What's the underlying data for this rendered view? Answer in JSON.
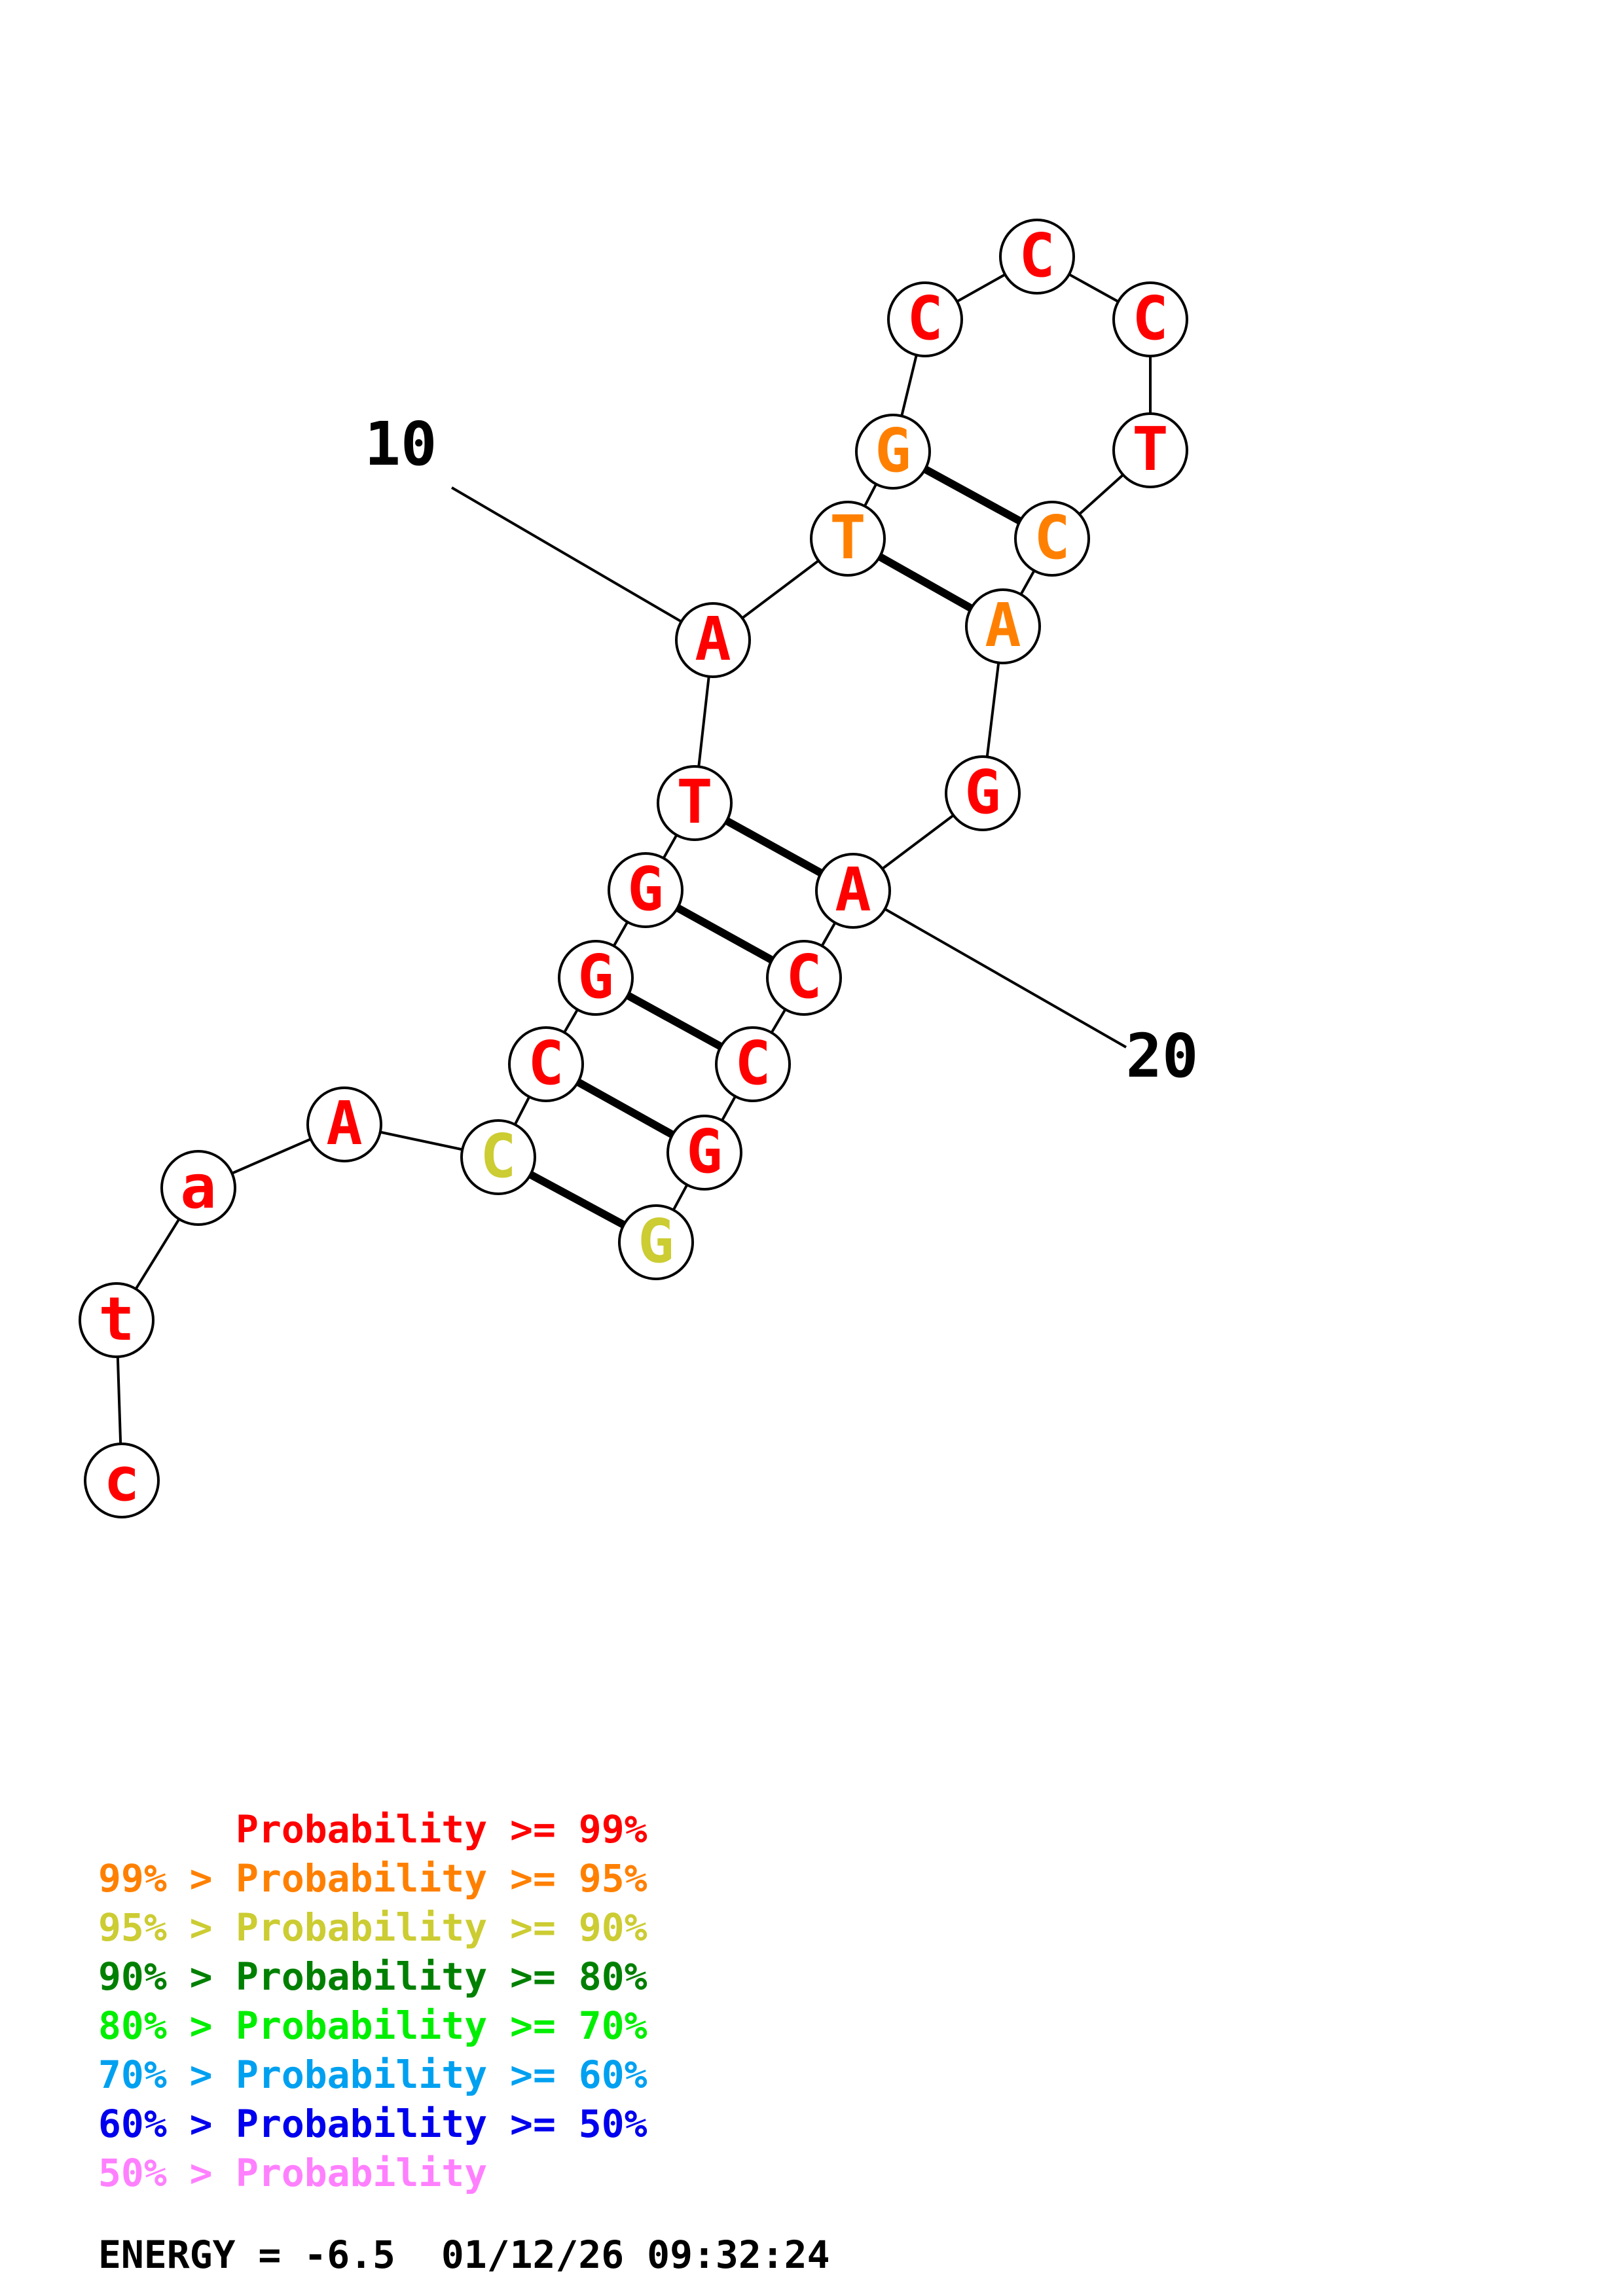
{
  "colors": {
    "p99": "#ff0000",
    "p95": "#ff8000",
    "p90": "#cccc33",
    "p80": "#008000",
    "p70": "#00ee00",
    "p60": "#00a0f0",
    "p50": "#0000ee",
    "plow": "#ff80ff"
  },
  "nucleotides": [
    {
      "index": 1,
      "letter": "c",
      "color": "p99"
    },
    {
      "index": 2,
      "letter": "t",
      "color": "p99"
    },
    {
      "index": 3,
      "letter": "a",
      "color": "p99"
    },
    {
      "index": 4,
      "letter": "A",
      "color": "p99"
    },
    {
      "index": 5,
      "letter": "C",
      "color": "p90"
    },
    {
      "index": 6,
      "letter": "C",
      "color": "p99"
    },
    {
      "index": 7,
      "letter": "G",
      "color": "p99"
    },
    {
      "index": 8,
      "letter": "G",
      "color": "p99"
    },
    {
      "index": 9,
      "letter": "T",
      "color": "p99"
    },
    {
      "index": 10,
      "letter": "A",
      "color": "p99"
    },
    {
      "index": 11,
      "letter": "T",
      "color": "p95"
    },
    {
      "index": 12,
      "letter": "G",
      "color": "p95"
    },
    {
      "index": 13,
      "letter": "C",
      "color": "p99"
    },
    {
      "index": 14,
      "letter": "C",
      "color": "p99"
    },
    {
      "index": 15,
      "letter": "C",
      "color": "p99"
    },
    {
      "index": 16,
      "letter": "T",
      "color": "p99"
    },
    {
      "index": 17,
      "letter": "C",
      "color": "p95"
    },
    {
      "index": 18,
      "letter": "A",
      "color": "p95"
    },
    {
      "index": 19,
      "letter": "G",
      "color": "p99"
    },
    {
      "index": 20,
      "letter": "A",
      "color": "p99"
    },
    {
      "index": 21,
      "letter": "C",
      "color": "p99"
    },
    {
      "index": 22,
      "letter": "C",
      "color": "p99"
    },
    {
      "index": 23,
      "letter": "G",
      "color": "p99"
    },
    {
      "index": 24,
      "letter": "G",
      "color": "p90"
    }
  ],
  "base_pairs": [
    [
      5,
      24
    ],
    [
      6,
      23
    ],
    [
      7,
      22
    ],
    [
      8,
      21
    ],
    [
      9,
      20
    ],
    [
      11,
      18
    ],
    [
      12,
      17
    ]
  ],
  "position_labels": [
    {
      "index": 10,
      "text": "10"
    },
    {
      "index": 20,
      "text": "20"
    }
  ],
  "legend": [
    {
      "prefix": "",
      "label": "Probability >= 99%",
      "color": "p99"
    },
    {
      "prefix": "99% > ",
      "label": "Probability >= 95%",
      "color": "p95"
    },
    {
      "prefix": "95% > ",
      "label": "Probability >= 90%",
      "color": "p90"
    },
    {
      "prefix": "90% > ",
      "label": "Probability >= 80%",
      "color": "p80"
    },
    {
      "prefix": "80% > ",
      "label": "Probability >= 70%",
      "color": "p70"
    },
    {
      "prefix": "70% > ",
      "label": "Probability >= 60%",
      "color": "p60"
    },
    {
      "prefix": "60% > ",
      "label": "Probability >= 50%",
      "color": "p50"
    },
    {
      "prefix": "50% > ",
      "label": "Probability",
      "color": "plow"
    }
  ],
  "energy": {
    "label": "ENERGY = -6.5",
    "timestamp": "01/12/26 09:32:24"
  }
}
